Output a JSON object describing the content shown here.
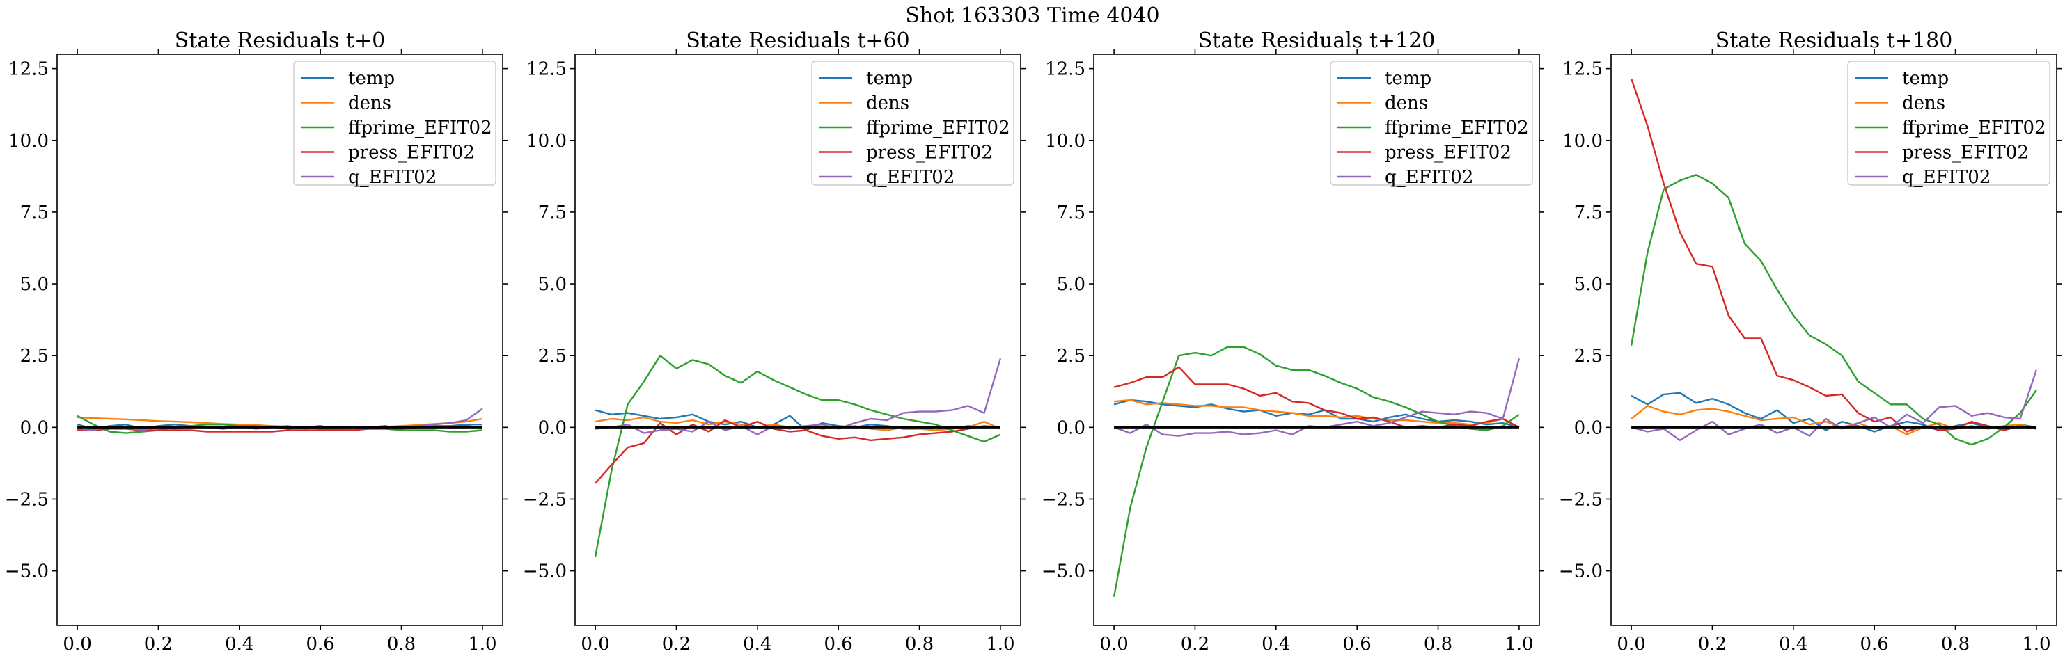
{
  "figure": {
    "suptitle": "Shot 163303   Time 4040"
  },
  "chart_data": [
    {
      "type": "line",
      "title": "State Residuals t+0",
      "xlim": [
        -0.05,
        1.05
      ],
      "ylim": [
        -6.9,
        13.0
      ],
      "xticks": [
        0.0,
        0.2,
        0.4,
        0.6,
        0.8,
        1.0
      ],
      "xtick_labels": [
        "0.0",
        "0.2",
        "0.4",
        "0.6",
        "0.8",
        "1.0"
      ],
      "yticks": [
        -5.0,
        -2.5,
        0.0,
        2.5,
        5.0,
        7.5,
        10.0,
        12.5
      ],
      "ytick_labels": [
        "−5.0",
        "−2.5",
        "0.0",
        "2.5",
        "5.0",
        "7.5",
        "10.0",
        "12.5"
      ],
      "legend": "top-right",
      "zero_line": true,
      "x": [
        0.0,
        0.04,
        0.08,
        0.12,
        0.16,
        0.2,
        0.24,
        0.28,
        0.32,
        0.36,
        0.4,
        0.44,
        0.48,
        0.52,
        0.56,
        0.6,
        0.64,
        0.68,
        0.72,
        0.76,
        0.8,
        0.84,
        0.88,
        0.92,
        0.96,
        1.0
      ],
      "series": [
        {
          "name": "temp",
          "color": "#1f77b4",
          "values": [
            0.1,
            -0.05,
            0.05,
            0.1,
            -0.05,
            0.05,
            0.1,
            0.05,
            0.0,
            -0.05,
            0.05,
            0.0,
            0.05,
            -0.05,
            0.0,
            0.05,
            -0.05,
            0.0,
            0.0,
            0.05,
            -0.05,
            0.0,
            0.05,
            0.05,
            0.1,
            0.1
          ]
        },
        {
          "name": "dens",
          "color": "#ff7f0e",
          "values": [
            0.35,
            0.32,
            0.3,
            0.28,
            0.25,
            0.22,
            0.2,
            0.18,
            0.15,
            0.12,
            0.1,
            0.08,
            0.05,
            0.03,
            0.0,
            -0.02,
            -0.03,
            -0.02,
            0.0,
            0.02,
            0.05,
            0.08,
            0.12,
            0.15,
            0.2,
            0.3
          ]
        },
        {
          "name": "ffprime_EFIT02",
          "color": "#2ca02c",
          "values": [
            0.4,
            0.1,
            -0.15,
            -0.2,
            -0.15,
            -0.1,
            0.0,
            0.05,
            0.1,
            0.1,
            0.05,
            0.05,
            0.0,
            0.0,
            0.0,
            -0.05,
            -0.05,
            -0.05,
            -0.05,
            -0.05,
            -0.1,
            -0.1,
            -0.1,
            -0.15,
            -0.15,
            -0.1
          ]
        },
        {
          "name": "press_EFIT02",
          "color": "#d62728",
          "values": [
            -0.1,
            -0.1,
            -0.05,
            -0.05,
            -0.1,
            -0.1,
            -0.1,
            -0.1,
            -0.15,
            -0.15,
            -0.15,
            -0.15,
            -0.15,
            -0.1,
            -0.1,
            -0.1,
            -0.1,
            -0.1,
            -0.05,
            -0.05,
            -0.05,
            0.0,
            0.0,
            0.0,
            0.05,
            0.0
          ]
        },
        {
          "name": "q_EFIT02",
          "color": "#9467bd",
          "values": [
            -0.05,
            -0.1,
            0.05,
            0.0,
            -0.1,
            0.0,
            -0.05,
            0.05,
            0.0,
            -0.05,
            0.05,
            -0.05,
            0.0,
            0.05,
            -0.05,
            0.0,
            0.0,
            -0.05,
            0.0,
            0.0,
            0.0,
            0.05,
            0.1,
            0.15,
            0.25,
            0.65
          ]
        }
      ]
    },
    {
      "type": "line",
      "title": "State Residuals t+60",
      "xlim": [
        -0.05,
        1.05
      ],
      "ylim": [
        -6.9,
        13.0
      ],
      "xticks": [
        0.0,
        0.2,
        0.4,
        0.6,
        0.8,
        1.0
      ],
      "xtick_labels": [
        "0.0",
        "0.2",
        "0.4",
        "0.6",
        "0.8",
        "1.0"
      ],
      "yticks": [
        -5.0,
        -2.5,
        0.0,
        2.5,
        5.0,
        7.5,
        10.0,
        12.5
      ],
      "ytick_labels": [
        "−5.0",
        "−2.5",
        "0.0",
        "2.5",
        "5.0",
        "7.5",
        "10.0",
        "12.5"
      ],
      "legend": "top-right",
      "zero_line": true,
      "x": [
        0.0,
        0.04,
        0.08,
        0.12,
        0.16,
        0.2,
        0.24,
        0.28,
        0.32,
        0.36,
        0.4,
        0.44,
        0.48,
        0.52,
        0.56,
        0.6,
        0.64,
        0.68,
        0.72,
        0.76,
        0.8,
        0.84,
        0.88,
        0.92,
        0.96,
        1.0
      ],
      "series": [
        {
          "name": "temp",
          "color": "#1f77b4",
          "values": [
            0.6,
            0.45,
            0.5,
            0.4,
            0.3,
            0.35,
            0.45,
            0.2,
            0.1,
            0.2,
            0.0,
            0.1,
            0.4,
            -0.1,
            0.15,
            0.05,
            0.0,
            0.1,
            0.05,
            -0.05,
            -0.05,
            0.0,
            -0.05,
            0.05,
            0.0,
            0.0
          ]
        },
        {
          "name": "dens",
          "color": "#ff7f0e",
          "values": [
            0.2,
            0.3,
            0.25,
            0.35,
            0.2,
            0.15,
            0.25,
            0.1,
            0.2,
            0.1,
            0.0,
            0.1,
            0.0,
            0.05,
            -0.05,
            0.0,
            0.05,
            -0.05,
            -0.1,
            0.0,
            -0.05,
            -0.1,
            -0.05,
            0.0,
            0.2,
            -0.05
          ]
        },
        {
          "name": "ffprime_EFIT02",
          "color": "#2ca02c",
          "values": [
            -4.5,
            -1.5,
            0.8,
            1.6,
            2.5,
            2.05,
            2.35,
            2.2,
            1.8,
            1.55,
            1.95,
            1.65,
            1.4,
            1.15,
            0.95,
            0.95,
            0.8,
            0.6,
            0.45,
            0.3,
            0.2,
            0.1,
            -0.1,
            -0.3,
            -0.5,
            -0.25
          ]
        },
        {
          "name": "press_EFIT02",
          "color": "#d62728",
          "values": [
            -1.95,
            -1.3,
            -0.7,
            -0.55,
            0.15,
            -0.25,
            0.1,
            -0.15,
            0.25,
            0.0,
            0.2,
            -0.05,
            -0.15,
            -0.1,
            -0.3,
            -0.4,
            -0.35,
            -0.45,
            -0.4,
            -0.35,
            -0.25,
            -0.2,
            -0.15,
            -0.05,
            0.05,
            0.0
          ]
        },
        {
          "name": "q_EFIT02",
          "color": "#9467bd",
          "values": [
            -0.05,
            0.0,
            0.1,
            -0.2,
            -0.1,
            -0.05,
            -0.15,
            0.2,
            -0.1,
            0.05,
            -0.25,
            0.05,
            -0.05,
            0.05,
            0.1,
            -0.05,
            0.15,
            0.3,
            0.25,
            0.5,
            0.55,
            0.55,
            0.6,
            0.75,
            0.5,
            2.4
          ]
        }
      ]
    },
    {
      "type": "line",
      "title": "State Residuals t+120",
      "xlim": [
        -0.05,
        1.05
      ],
      "ylim": [
        -6.9,
        13.0
      ],
      "xticks": [
        0.0,
        0.2,
        0.4,
        0.6,
        0.8,
        1.0
      ],
      "xtick_labels": [
        "0.0",
        "0.2",
        "0.4",
        "0.6",
        "0.8",
        "1.0"
      ],
      "yticks": [
        -5.0,
        -2.5,
        0.0,
        2.5,
        5.0,
        7.5,
        10.0,
        12.5
      ],
      "ytick_labels": [
        "−5.0",
        "−2.5",
        "0.0",
        "2.5",
        "5.0",
        "7.5",
        "10.0",
        "12.5"
      ],
      "legend": "top-right",
      "zero_line": true,
      "x": [
        0.0,
        0.04,
        0.08,
        0.12,
        0.16,
        0.2,
        0.24,
        0.28,
        0.32,
        0.36,
        0.4,
        0.44,
        0.48,
        0.52,
        0.56,
        0.6,
        0.64,
        0.68,
        0.72,
        0.76,
        0.8,
        0.84,
        0.88,
        0.92,
        0.96,
        1.0
      ],
      "series": [
        {
          "name": "temp",
          "color": "#1f77b4",
          "values": [
            0.8,
            0.95,
            0.9,
            0.8,
            0.75,
            0.7,
            0.8,
            0.65,
            0.55,
            0.6,
            0.4,
            0.5,
            0.45,
            0.6,
            0.3,
            0.3,
            0.2,
            0.35,
            0.45,
            0.3,
            0.2,
            0.25,
            0.2,
            0.1,
            0.15,
            0.0
          ]
        },
        {
          "name": "dens",
          "color": "#ff7f0e",
          "values": [
            0.9,
            0.95,
            0.8,
            0.85,
            0.8,
            0.75,
            0.75,
            0.7,
            0.7,
            0.6,
            0.55,
            0.5,
            0.4,
            0.4,
            0.35,
            0.4,
            0.3,
            0.25,
            0.25,
            0.2,
            0.15,
            0.15,
            0.1,
            0.15,
            0.3,
            0.0
          ]
        },
        {
          "name": "ffprime_EFIT02",
          "color": "#2ca02c",
          "values": [
            -5.9,
            -2.8,
            -0.7,
            0.9,
            2.5,
            2.6,
            2.5,
            2.8,
            2.8,
            2.55,
            2.15,
            2.0,
            2.0,
            1.8,
            1.55,
            1.35,
            1.05,
            0.9,
            0.7,
            0.45,
            0.2,
            0.05,
            -0.05,
            -0.1,
            0.05,
            0.45
          ]
        },
        {
          "name": "press_EFIT02",
          "color": "#d62728",
          "values": [
            1.4,
            1.55,
            1.75,
            1.75,
            2.1,
            1.5,
            1.5,
            1.5,
            1.35,
            1.1,
            1.2,
            0.9,
            0.85,
            0.6,
            0.5,
            0.3,
            0.35,
            0.2,
            0.0,
            0.05,
            0.0,
            0.1,
            0.05,
            0.2,
            0.3,
            0.0
          ]
        },
        {
          "name": "q_EFIT02",
          "color": "#9467bd",
          "values": [
            0.0,
            -0.2,
            0.1,
            -0.25,
            -0.3,
            -0.2,
            -0.2,
            -0.15,
            -0.25,
            -0.2,
            -0.1,
            -0.25,
            0.05,
            0.0,
            0.1,
            0.2,
            0.05,
            0.15,
            0.35,
            0.55,
            0.5,
            0.45,
            0.55,
            0.5,
            0.3,
            2.4
          ]
        }
      ]
    },
    {
      "type": "line",
      "title": "State Residuals t+180",
      "xlim": [
        -0.05,
        1.05
      ],
      "ylim": [
        -6.9,
        13.0
      ],
      "xticks": [
        0.0,
        0.2,
        0.4,
        0.6,
        0.8,
        1.0
      ],
      "xtick_labels": [
        "0.0",
        "0.2",
        "0.4",
        "0.6",
        "0.8",
        "1.0"
      ],
      "yticks": [
        -5.0,
        -2.5,
        0.0,
        2.5,
        5.0,
        7.5,
        10.0,
        12.5
      ],
      "ytick_labels": [
        "−5.0",
        "−2.5",
        "0.0",
        "2.5",
        "5.0",
        "7.5",
        "10.0",
        "12.5"
      ],
      "legend": "top-right",
      "zero_line": true,
      "x": [
        0.0,
        0.04,
        0.08,
        0.12,
        0.16,
        0.2,
        0.24,
        0.28,
        0.32,
        0.36,
        0.4,
        0.44,
        0.48,
        0.52,
        0.56,
        0.6,
        0.64,
        0.68,
        0.72,
        0.76,
        0.8,
        0.84,
        0.88,
        0.92,
        0.96,
        1.0
      ],
      "series": [
        {
          "name": "temp",
          "color": "#1f77b4",
          "values": [
            1.1,
            0.8,
            1.15,
            1.2,
            0.85,
            1.0,
            0.8,
            0.5,
            0.3,
            0.6,
            0.15,
            0.3,
            -0.1,
            0.2,
            0.05,
            -0.15,
            0.05,
            0.2,
            0.1,
            -0.1,
            0.05,
            0.15,
            0.0,
            -0.05,
            0.1,
            0.0
          ]
        },
        {
          "name": "dens",
          "color": "#ff7f0e",
          "values": [
            0.3,
            0.75,
            0.55,
            0.45,
            0.6,
            0.65,
            0.55,
            0.4,
            0.25,
            0.3,
            0.35,
            0.1,
            0.2,
            0.0,
            0.15,
            -0.05,
            0.05,
            -0.25,
            0.0,
            0.15,
            -0.05,
            0.05,
            -0.05,
            0.05,
            0.1,
            -0.05
          ]
        },
        {
          "name": "ffprime_EFIT02",
          "color": "#2ca02c",
          "values": [
            2.85,
            6.1,
            8.3,
            8.6,
            8.8,
            8.5,
            8.0,
            6.4,
            5.8,
            4.8,
            3.9,
            3.2,
            2.9,
            2.5,
            1.6,
            1.2,
            0.8,
            0.8,
            0.3,
            0.1,
            -0.4,
            -0.6,
            -0.4,
            0.0,
            0.5,
            1.3
          ]
        },
        {
          "name": "press_EFIT02",
          "color": "#d62728",
          "values": [
            12.15,
            10.5,
            8.5,
            6.8,
            5.7,
            5.6,
            3.9,
            3.1,
            3.1,
            1.8,
            1.65,
            1.4,
            1.1,
            1.15,
            0.5,
            0.2,
            0.35,
            -0.15,
            0.05,
            -0.1,
            -0.05,
            0.2,
            0.05,
            -0.1,
            0.05,
            -0.05
          ]
        },
        {
          "name": "q_EFIT02",
          "color": "#9467bd",
          "values": [
            0.0,
            -0.15,
            -0.05,
            -0.45,
            -0.1,
            0.2,
            -0.25,
            -0.05,
            0.1,
            -0.2,
            0.0,
            -0.3,
            0.3,
            -0.05,
            0.15,
            0.35,
            0.0,
            0.45,
            0.15,
            0.7,
            0.75,
            0.4,
            0.5,
            0.35,
            0.3,
            2.0
          ]
        }
      ]
    }
  ]
}
